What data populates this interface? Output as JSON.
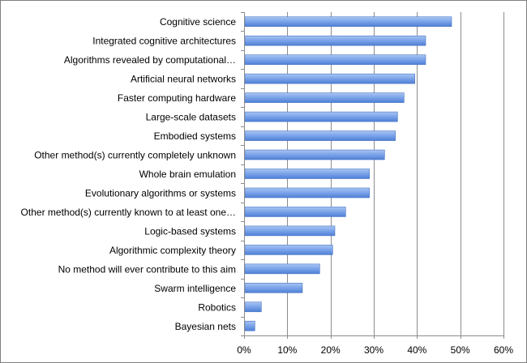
{
  "chart_data": {
    "type": "bar",
    "orientation": "horizontal",
    "categories": [
      "Cognitive science",
      "Integrated cognitive architectures",
      "Algorithms revealed by computational…",
      "Artificial neural networks",
      "Faster computing hardware",
      "Large-scale datasets",
      "Embodied systems",
      "Other method(s) currently completely unknown",
      "Whole brain emulation",
      "Evolutionary algorithms or systems",
      "Other method(s) currently known to at least one…",
      "Logic-based systems",
      "Algorithmic complexity theory",
      "No method will ever contribute to this aim",
      "Swarm intelligence",
      "Robotics",
      "Bayesian nets"
    ],
    "values": [
      48,
      42,
      42,
      39.5,
      37,
      35.5,
      35,
      32.5,
      29,
      29,
      23.5,
      21,
      20.5,
      17.5,
      13.5,
      4,
      2.5
    ],
    "xlim": [
      0,
      60
    ],
    "xticks": [
      0,
      10,
      20,
      30,
      40,
      50,
      60
    ],
    "xtick_labels": [
      "0%",
      "10%",
      "20%",
      "30%",
      "40%",
      "50%",
      "60%"
    ],
    "grid": "vertical",
    "legend": "none",
    "bar_color": "#6f9be6"
  }
}
